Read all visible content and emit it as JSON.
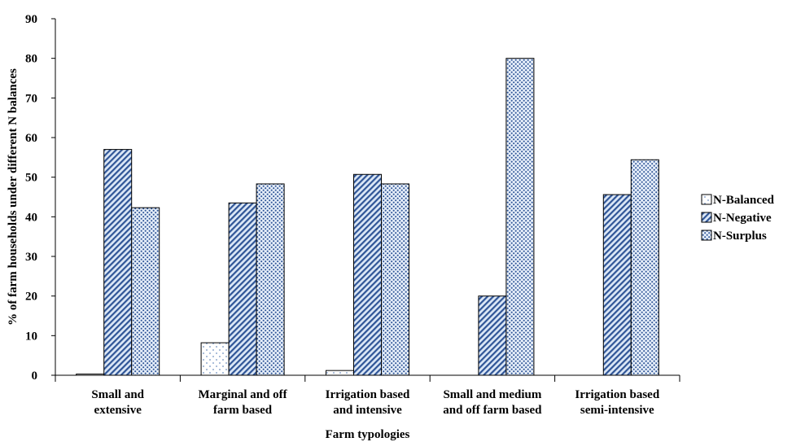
{
  "chart_data": {
    "type": "bar",
    "title": "",
    "xlabel": "Farm typologies",
    "ylabel": "% of farm households under different N balances",
    "ylim": [
      0,
      90
    ],
    "yticks": [
      0,
      10,
      20,
      30,
      40,
      50,
      60,
      70,
      80,
      90
    ],
    "categories": [
      [
        "Small and",
        "extensive"
      ],
      [
        "Marginal and off",
        "farm based"
      ],
      [
        "Irrigation based",
        "and intensive"
      ],
      [
        "Small and medium",
        "and off farm based"
      ],
      [
        "Irrigation based",
        "semi-intensive"
      ]
    ],
    "series": [
      {
        "name": "N-Balanced",
        "pattern": "dots-sparse",
        "values": [
          0.3,
          8.2,
          1.2,
          0,
          0
        ]
      },
      {
        "name": "N-Negative",
        "pattern": "diagonal",
        "values": [
          57,
          43.5,
          50.7,
          20,
          45.6
        ]
      },
      {
        "name": "N-Surplus",
        "pattern": "dots-dense",
        "values": [
          42.3,
          48.3,
          48.3,
          80,
          54.4
        ]
      }
    ],
    "grid": false,
    "legend_position": "right",
    "colors": {
      "bar_fill": "#dbe7f6",
      "pattern_ink": "#2f5597",
      "outline": "#000000"
    }
  }
}
